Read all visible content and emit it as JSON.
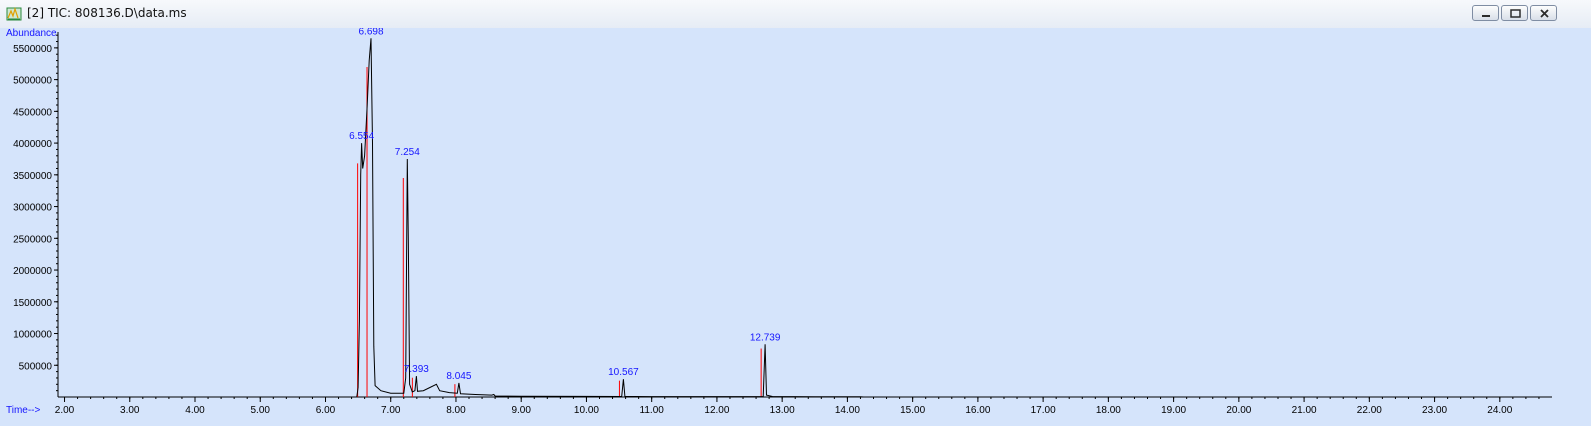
{
  "window": {
    "title": "[2] TIC: 808136.D\\data.ms",
    "icon": "chromatogram-app-icon",
    "buttons": [
      "minimize",
      "restore",
      "close"
    ]
  },
  "chart_data": {
    "type": "line",
    "xlabel": "Time-->",
    "ylabel": "Abundance",
    "xlim": [
      1.9,
      24.8
    ],
    "ylim": [
      0,
      5750000
    ],
    "x_ticks": [
      "2.00",
      "3.00",
      "4.00",
      "5.00",
      "6.00",
      "7.00",
      "8.00",
      "9.00",
      "10.00",
      "11.00",
      "12.00",
      "13.00",
      "14.00",
      "15.00",
      "16.00",
      "17.00",
      "18.00",
      "19.00",
      "20.00",
      "21.00",
      "22.00",
      "23.00",
      "24.00"
    ],
    "y_ticks": [
      "500000",
      "1000000",
      "1500000",
      "2000000",
      "2500000",
      "3000000",
      "3500000",
      "4000000",
      "4500000",
      "5000000",
      "5500000"
    ],
    "series": [
      {
        "color": "#000000",
        "points": [
          [
            1.9,
            0
          ],
          [
            6.48,
            0
          ],
          [
            6.5,
            150000
          ],
          [
            6.52,
            1200000
          ],
          [
            6.54,
            3500000
          ],
          [
            6.554,
            4000000
          ],
          [
            6.57,
            3600000
          ],
          [
            6.6,
            3800000
          ],
          [
            6.64,
            4600000
          ],
          [
            6.67,
            5300000
          ],
          [
            6.698,
            5650000
          ],
          [
            6.72,
            4000000
          ],
          [
            6.74,
            800000
          ],
          [
            6.76,
            180000
          ],
          [
            6.85,
            100000
          ],
          [
            7.0,
            60000
          ],
          [
            7.2,
            60000
          ],
          [
            7.23,
            300000
          ],
          [
            7.254,
            3750000
          ],
          [
            7.27,
            2500000
          ],
          [
            7.29,
            200000
          ],
          [
            7.33,
            80000
          ],
          [
            7.37,
            100000
          ],
          [
            7.393,
            330000
          ],
          [
            7.41,
            90000
          ],
          [
            7.5,
            100000
          ],
          [
            7.6,
            150000
          ],
          [
            7.7,
            200000
          ],
          [
            7.75,
            100000
          ],
          [
            7.9,
            70000
          ],
          [
            8.02,
            60000
          ],
          [
            8.045,
            220000
          ],
          [
            8.07,
            50000
          ],
          [
            8.3,
            40000
          ],
          [
            8.55,
            30000
          ],
          [
            8.58,
            40000
          ],
          [
            8.6,
            15000
          ],
          [
            9.0,
            12000
          ],
          [
            10.0,
            9000
          ],
          [
            10.54,
            8000
          ],
          [
            10.567,
            280000
          ],
          [
            10.59,
            9000
          ],
          [
            11.0,
            7000
          ],
          [
            12.0,
            6000
          ],
          [
            12.71,
            6000
          ],
          [
            12.739,
            830000
          ],
          [
            12.76,
            30000
          ],
          [
            12.85,
            8000
          ],
          [
            13.5,
            5000
          ],
          [
            14.2,
            4000
          ],
          [
            14.25,
            0
          ],
          [
            24.8,
            0
          ]
        ]
      }
    ],
    "baseline_color": "#ff0000",
    "peaks": [
      {
        "label": "6.698",
        "x": 6.698,
        "y": 5650000
      },
      {
        "label": "6.554",
        "x": 6.554,
        "y": 4000000
      },
      {
        "label": "7.254",
        "x": 7.254,
        "y": 3750000
      },
      {
        "label": "7.393",
        "x": 7.393,
        "y": 330000
      },
      {
        "label": "8.045",
        "x": 8.045,
        "y": 220000
      },
      {
        "label": "10.567",
        "x": 10.567,
        "y": 280000
      },
      {
        "label": "12.739",
        "x": 12.739,
        "y": 830000
      }
    ],
    "grid": false
  }
}
